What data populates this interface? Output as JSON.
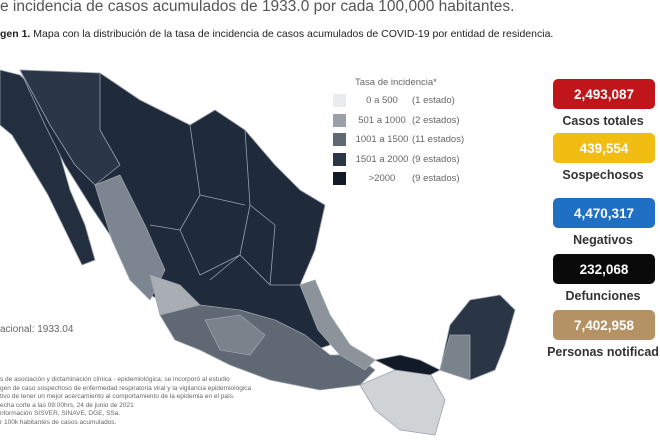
{
  "header": {
    "title": "e incidencia de casos acumulados de 1933.0 por cada 100,000 habitantes.",
    "caption_label": "gen 1.",
    "caption": "Mapa con la distribución de la tasa de incidencia de casos acumulados de COVID-19 por entidad de residencia."
  },
  "legend": {
    "title": "Tasa de incidencia*",
    "items": [
      {
        "range": "0  a  500",
        "count": "(1 estado)"
      },
      {
        "range": "501 a  1000",
        "count": "(2 estados)"
      },
      {
        "range": "1001 a  1500",
        "count": "(11 estados)"
      },
      {
        "range": "1501 a  2000",
        "count": "(9 estados)"
      },
      {
        "range": ">2000",
        "count": "(9 estados)"
      }
    ]
  },
  "stats": [
    {
      "value": "2,493,087",
      "label": "Casos totales"
    },
    {
      "value": "439,554",
      "label": "Sospechosos"
    },
    {
      "value": "4,470,317",
      "label": "Negativos"
    },
    {
      "value": "232,068",
      "label": "Defunciones"
    },
    {
      "value": "7,402,958",
      "label": "Personas notificad"
    }
  ],
  "national": "acional: 1933.04",
  "notes": [
    "s de asociación y dictaminación clínica - epidemiológica, se incorporó al estudio",
    "gen de caso sospechoso de enfermedad respiratoria viral y la vigilancia epidemiológica",
    "tivo de tener un mejor acercamiento al comportamiento de la epidemia en el país.",
    "echa corte a las 09:00hrs, 24 de junio de 2021",
    "nformación SISVER, SINAVE, DGE, SSa.",
    "r 100k habitantes de casos acumulados."
  ]
}
